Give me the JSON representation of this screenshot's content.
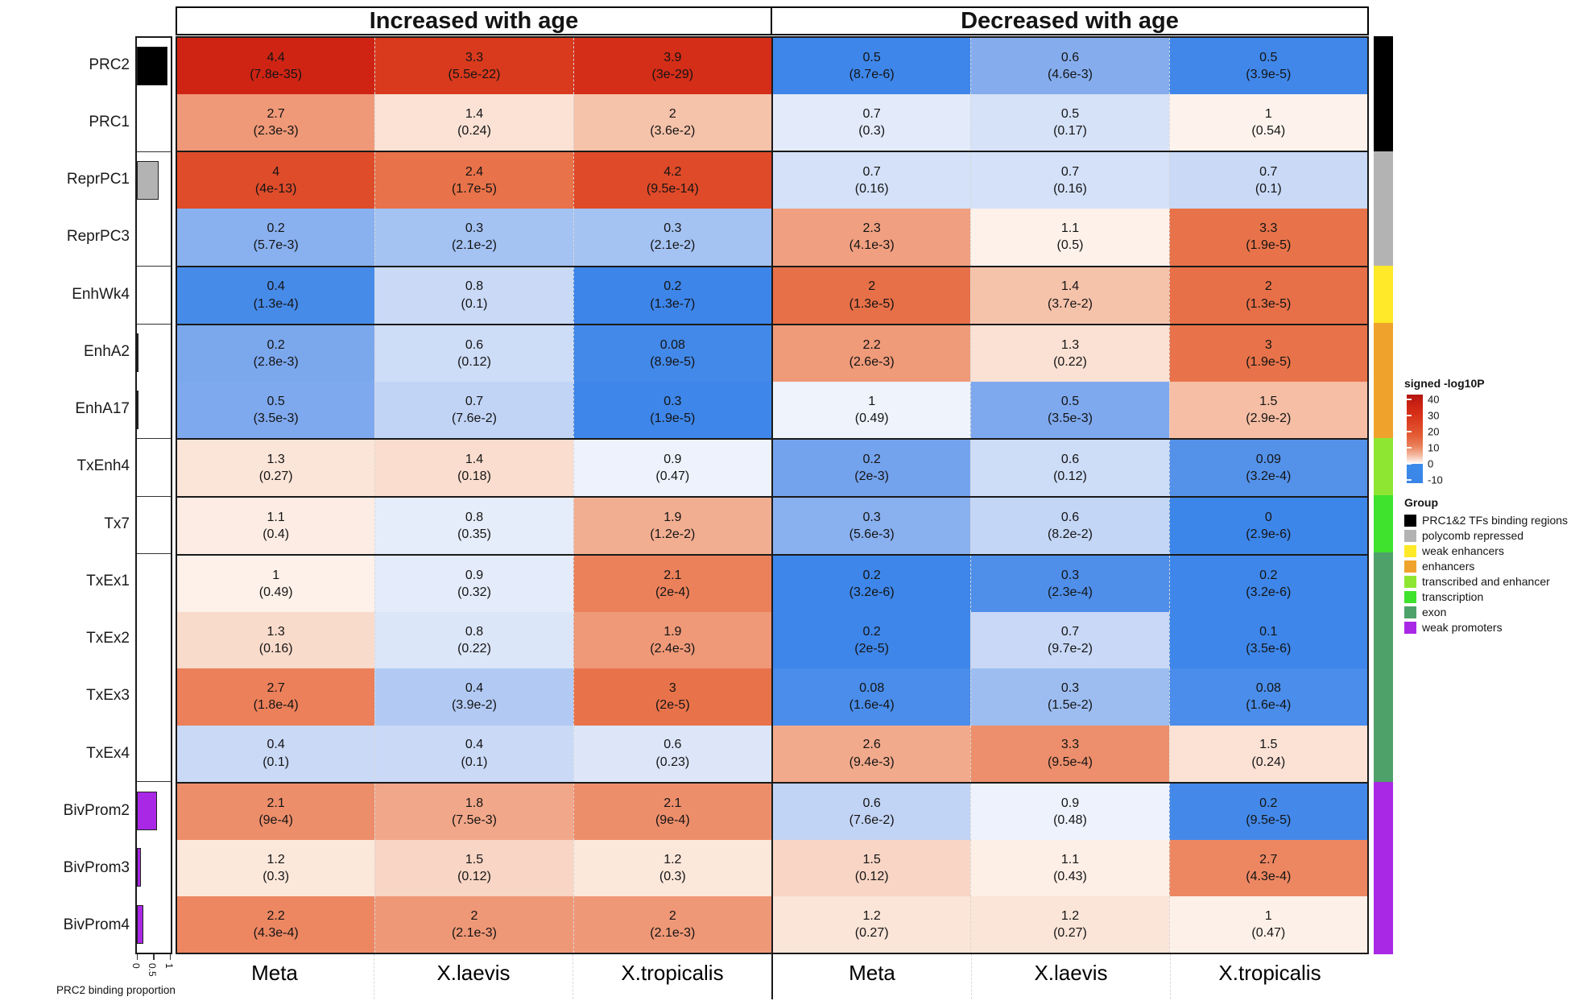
{
  "headers": {
    "increased": "Increased with age",
    "decreased": "Decreased with age"
  },
  "columns": [
    "Meta",
    "X.laevis",
    "X.tropicalis",
    "Meta",
    "X.laevis",
    "X.tropicalis"
  ],
  "left_axis": {
    "ticks": [
      "0",
      "0.5",
      "1"
    ],
    "label": "PRC2 binding proportion"
  },
  "legend": {
    "colorbar_title": "signed -log10P",
    "colorbar_ticks": [
      "40",
      "30",
      "20",
      "10",
      "0",
      "-10"
    ],
    "group_title": "Group",
    "groups": [
      {
        "key": "prc",
        "label": "PRC1&2 TFs binding regions",
        "color": "#000000"
      },
      {
        "key": "polycomb",
        "label": "polycomb repressed",
        "color": "#b3b3b3"
      },
      {
        "key": "weak_enh",
        "label": "weak enhancers",
        "color": "#ffe929"
      },
      {
        "key": "enh",
        "label": "enhancers",
        "color": "#efa32d"
      },
      {
        "key": "tx_enh",
        "label": "transcribed and enhancer",
        "color": "#8ee633"
      },
      {
        "key": "tx",
        "label": "transcription",
        "color": "#3fe22d"
      },
      {
        "key": "exon",
        "label": "exon",
        "color": "#4fa16a"
      },
      {
        "key": "weak_prom",
        "label": "weak promoters",
        "color": "#a928e6"
      }
    ]
  },
  "chart_data": {
    "type": "heatmap",
    "cell_format": "fold_enrichment (p_value)",
    "column_group_headers": [
      "Increased with age",
      "Decreased with age"
    ],
    "columns": [
      "Meta",
      "X.laevis",
      "X.tropicalis",
      "Meta",
      "X.laevis",
      "X.tropicalis"
    ],
    "color_scale": {
      "name": "signed -log10P",
      "range": [
        -10,
        40
      ],
      "zero": "#ffffff",
      "positive_max": "#c21a10",
      "negative_max": "#3a84e8"
    },
    "rows": [
      {
        "label": "PRC2",
        "group": "prc",
        "prc2_binding_proportion": 0.9,
        "cells": [
          {
            "fold": "4.4",
            "p": "7.8e-35",
            "dir": 1
          },
          {
            "fold": "3.3",
            "p": "5.5e-22",
            "dir": 1
          },
          {
            "fold": "3.9",
            "p": "3e-29",
            "dir": 1
          },
          {
            "fold": "0.5",
            "p": "8.7e-6",
            "dir": -1
          },
          {
            "fold": "0.6",
            "p": "4.6e-3",
            "dir": -1
          },
          {
            "fold": "0.5",
            "p": "3.9e-5",
            "dir": -1
          }
        ]
      },
      {
        "label": "PRC1",
        "group": "prc",
        "prc2_binding_proportion": 0,
        "cells": [
          {
            "fold": "2.7",
            "p": "2.3e-3",
            "dir": 1
          },
          {
            "fold": "1.4",
            "p": "0.24",
            "dir": 1
          },
          {
            "fold": "2",
            "p": "3.6e-2",
            "dir": 1
          },
          {
            "fold": "0.7",
            "p": "0.3",
            "dir": -1
          },
          {
            "fold": "0.5",
            "p": "0.17",
            "dir": -1
          },
          {
            "fold": "1",
            "p": "0.54",
            "dir": 1
          }
        ]
      },
      {
        "label": "ReprPC1",
        "group": "polycomb",
        "prc2_binding_proportion": 0.64,
        "cells": [
          {
            "fold": "4",
            "p": "4e-13",
            "dir": 1
          },
          {
            "fold": "2.4",
            "p": "1.7e-5",
            "dir": 1
          },
          {
            "fold": "4.2",
            "p": "9.5e-14",
            "dir": 1
          },
          {
            "fold": "0.7",
            "p": "0.16",
            "dir": -1
          },
          {
            "fold": "0.7",
            "p": "0.16",
            "dir": -1
          },
          {
            "fold": "0.7",
            "p": "0.1",
            "dir": -1
          }
        ]
      },
      {
        "label": "ReprPC3",
        "group": "polycomb",
        "prc2_binding_proportion": 0,
        "cells": [
          {
            "fold": "0.2",
            "p": "5.7e-3",
            "dir": -1
          },
          {
            "fold": "0.3",
            "p": "2.1e-2",
            "dir": -1
          },
          {
            "fold": "0.3",
            "p": "2.1e-2",
            "dir": -1
          },
          {
            "fold": "2.3",
            "p": "4.1e-3",
            "dir": 1
          },
          {
            "fold": "1.1",
            "p": "0.5",
            "dir": 1
          },
          {
            "fold": "3.3",
            "p": "1.9e-5",
            "dir": 1
          }
        ]
      },
      {
        "label": "EnhWk4",
        "group": "weak_enh",
        "prc2_binding_proportion": 0,
        "cells": [
          {
            "fold": "0.4",
            "p": "1.3e-4",
            "dir": -1
          },
          {
            "fold": "0.8",
            "p": "0.1",
            "dir": -1
          },
          {
            "fold": "0.2",
            "p": "1.3e-7",
            "dir": -1
          },
          {
            "fold": "2",
            "p": "1.3e-5",
            "dir": 1
          },
          {
            "fold": "1.4",
            "p": "3.7e-2",
            "dir": 1
          },
          {
            "fold": "2",
            "p": "1.3e-5",
            "dir": 1
          }
        ]
      },
      {
        "label": "EnhA2",
        "group": "enh",
        "prc2_binding_proportion": 0.015,
        "cells": [
          {
            "fold": "0.2",
            "p": "2.8e-3",
            "dir": -1
          },
          {
            "fold": "0.6",
            "p": "0.12",
            "dir": -1
          },
          {
            "fold": "0.08",
            "p": "8.9e-5",
            "dir": -1
          },
          {
            "fold": "2.2",
            "p": "2.6e-3",
            "dir": 1
          },
          {
            "fold": "1.3",
            "p": "0.22",
            "dir": 1
          },
          {
            "fold": "3",
            "p": "1.9e-5",
            "dir": 1
          }
        ]
      },
      {
        "label": "EnhA17",
        "group": "enh",
        "prc2_binding_proportion": 0.015,
        "cells": [
          {
            "fold": "0.5",
            "p": "3.5e-3",
            "dir": -1
          },
          {
            "fold": "0.7",
            "p": "7.6e-2",
            "dir": -1
          },
          {
            "fold": "0.3",
            "p": "1.9e-5",
            "dir": -1
          },
          {
            "fold": "1",
            "p": "0.49",
            "dir": -1
          },
          {
            "fold": "0.5",
            "p": "3.5e-3",
            "dir": -1
          },
          {
            "fold": "1.5",
            "p": "2.9e-2",
            "dir": 1
          }
        ]
      },
      {
        "label": "TxEnh4",
        "group": "tx_enh",
        "prc2_binding_proportion": 0,
        "cells": [
          {
            "fold": "1.3",
            "p": "0.27",
            "dir": 1
          },
          {
            "fold": "1.4",
            "p": "0.18",
            "dir": 1
          },
          {
            "fold": "0.9",
            "p": "0.47",
            "dir": -1
          },
          {
            "fold": "0.2",
            "p": "2e-3",
            "dir": -1
          },
          {
            "fold": "0.6",
            "p": "0.12",
            "dir": -1
          },
          {
            "fold": "0.09",
            "p": "3.2e-4",
            "dir": -1
          }
        ]
      },
      {
        "label": "Tx7",
        "group": "tx",
        "prc2_binding_proportion": 0,
        "cells": [
          {
            "fold": "1.1",
            "p": "0.4",
            "dir": 1
          },
          {
            "fold": "0.8",
            "p": "0.35",
            "dir": -1
          },
          {
            "fold": "1.9",
            "p": "1.2e-2",
            "dir": 1
          },
          {
            "fold": "0.3",
            "p": "5.6e-3",
            "dir": -1
          },
          {
            "fold": "0.6",
            "p": "8.2e-2",
            "dir": -1
          },
          {
            "fold": "0",
            "p": "2.9e-6",
            "dir": -1
          }
        ]
      },
      {
        "label": "TxEx1",
        "group": "exon",
        "prc2_binding_proportion": 0,
        "cells": [
          {
            "fold": "1",
            "p": "0.49",
            "dir": 1
          },
          {
            "fold": "0.9",
            "p": "0.32",
            "dir": -1
          },
          {
            "fold": "2.1",
            "p": "2e-4",
            "dir": 1
          },
          {
            "fold": "0.2",
            "p": "3.2e-6",
            "dir": -1
          },
          {
            "fold": "0.3",
            "p": "2.3e-4",
            "dir": -1
          },
          {
            "fold": "0.2",
            "p": "3.2e-6",
            "dir": -1
          }
        ]
      },
      {
        "label": "TxEx2",
        "group": "exon",
        "prc2_binding_proportion": 0,
        "cells": [
          {
            "fold": "1.3",
            "p": "0.16",
            "dir": 1
          },
          {
            "fold": "0.8",
            "p": "0.22",
            "dir": -1
          },
          {
            "fold": "1.9",
            "p": "2.4e-3",
            "dir": 1
          },
          {
            "fold": "0.2",
            "p": "2e-5",
            "dir": -1
          },
          {
            "fold": "0.7",
            "p": "9.7e-2",
            "dir": -1
          },
          {
            "fold": "0.1",
            "p": "3.5e-6",
            "dir": -1
          }
        ]
      },
      {
        "label": "TxEx3",
        "group": "exon",
        "prc2_binding_proportion": 0,
        "cells": [
          {
            "fold": "2.7",
            "p": "1.8e-4",
            "dir": 1
          },
          {
            "fold": "0.4",
            "p": "3.9e-2",
            "dir": -1
          },
          {
            "fold": "3",
            "p": "2e-5",
            "dir": 1
          },
          {
            "fold": "0.08",
            "p": "1.6e-4",
            "dir": -1
          },
          {
            "fold": "0.3",
            "p": "1.5e-2",
            "dir": -1
          },
          {
            "fold": "0.08",
            "p": "1.6e-4",
            "dir": -1
          }
        ]
      },
      {
        "label": "TxEx4",
        "group": "exon",
        "prc2_binding_proportion": 0,
        "cells": [
          {
            "fold": "0.4",
            "p": "0.1",
            "dir": -1
          },
          {
            "fold": "0.4",
            "p": "0.1",
            "dir": -1
          },
          {
            "fold": "0.6",
            "p": "0.23",
            "dir": -1
          },
          {
            "fold": "2.6",
            "p": "9.4e-3",
            "dir": 1
          },
          {
            "fold": "3.3",
            "p": "9.5e-4",
            "dir": 1
          },
          {
            "fold": "1.5",
            "p": "0.24",
            "dir": 1
          }
        ]
      },
      {
        "label": "BivProm2",
        "group": "weak_prom",
        "prc2_binding_proportion": 0.6,
        "cells": [
          {
            "fold": "2.1",
            "p": "9e-4",
            "dir": 1
          },
          {
            "fold": "1.8",
            "p": "7.5e-3",
            "dir": 1
          },
          {
            "fold": "2.1",
            "p": "9e-4",
            "dir": 1
          },
          {
            "fold": "0.6",
            "p": "7.6e-2",
            "dir": -1
          },
          {
            "fold": "0.9",
            "p": "0.48",
            "dir": -1
          },
          {
            "fold": "0.2",
            "p": "9.5e-5",
            "dir": -1
          }
        ]
      },
      {
        "label": "BivProm3",
        "group": "weak_prom",
        "prc2_binding_proportion": 0.12,
        "cells": [
          {
            "fold": "1.2",
            "p": "0.3",
            "dir": 1
          },
          {
            "fold": "1.5",
            "p": "0.12",
            "dir": 1
          },
          {
            "fold": "1.2",
            "p": "0.3",
            "dir": 1
          },
          {
            "fold": "1.5",
            "p": "0.12",
            "dir": 1
          },
          {
            "fold": "1.1",
            "p": "0.43",
            "dir": 1
          },
          {
            "fold": "2.7",
            "p": "4.3e-4",
            "dir": 1
          }
        ]
      },
      {
        "label": "BivProm4",
        "group": "weak_prom",
        "prc2_binding_proportion": 0.18,
        "cells": [
          {
            "fold": "2.2",
            "p": "4.3e-4",
            "dir": 1
          },
          {
            "fold": "2",
            "p": "2.1e-3",
            "dir": 1
          },
          {
            "fold": "2",
            "p": "2.1e-3",
            "dir": 1
          },
          {
            "fold": "1.2",
            "p": "0.27",
            "dir": 1
          },
          {
            "fold": "1.2",
            "p": "0.27",
            "dir": 1
          },
          {
            "fold": "1",
            "p": "0.47",
            "dir": 1
          }
        ]
      }
    ]
  }
}
